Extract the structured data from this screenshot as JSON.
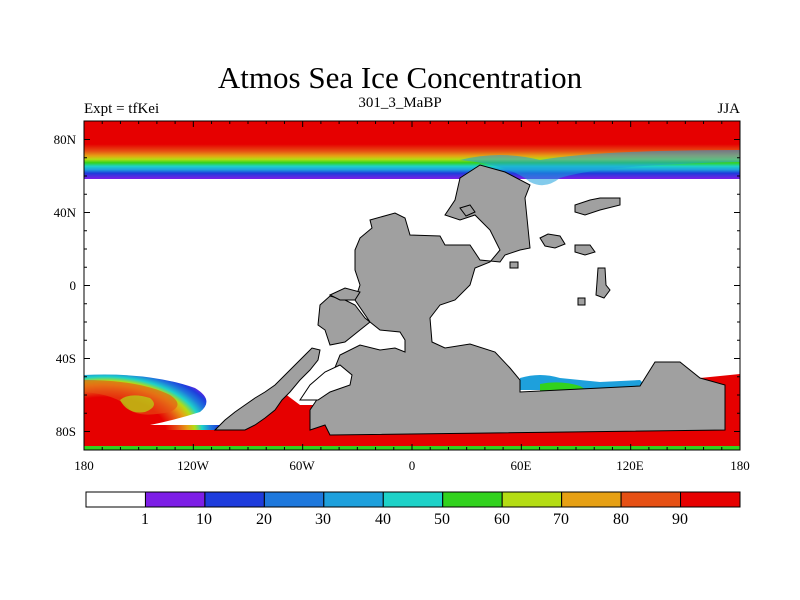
{
  "title": "Atmos Sea Ice Concentration",
  "subtitle_left": "Expt = tfKei",
  "subtitle_center": "301_3_MaBP",
  "subtitle_right": "JJA",
  "lat_ticks": [
    "80N",
    "40N",
    "0",
    "40S",
    "80S"
  ],
  "lon_ticks": [
    "180",
    "120W",
    "60W",
    "0",
    "60E",
    "120E",
    "180"
  ],
  "colorbar": {
    "labels": [
      "1",
      "10",
      "20",
      "30",
      "40",
      "50",
      "60",
      "70",
      "80",
      "90"
    ],
    "colors": [
      "#ffffff",
      "#7d1ee6",
      "#1e3cdc",
      "#1e78dc",
      "#1ea0dc",
      "#1ed2c8",
      "#32d21e",
      "#b4dc14",
      "#e6a014",
      "#e65014",
      "#e60000"
    ]
  },
  "land_color": "#a0a0a0",
  "land_labels": []
}
